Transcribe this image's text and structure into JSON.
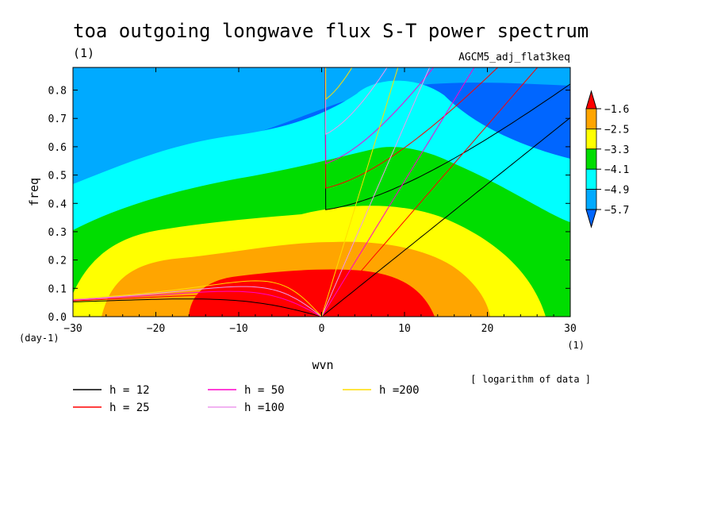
{
  "chart_data": {
    "type": "heatmap",
    "title": "toa outgoing longwave flux S-T power spectrum",
    "units_label": "(1)",
    "subtitle_right": "AGCM5_adj_flat3keq",
    "xlabel": "wvn",
    "ylabel": "freq",
    "x_unit": "(1)",
    "y_unit": "(day-1)",
    "note": "[ logarithm of data ]",
    "xlim": [
      -30,
      30
    ],
    "ylim": [
      0,
      0.88
    ],
    "x_ticks": [
      "-30",
      "-20",
      "-10",
      "0",
      "10",
      "20",
      "30"
    ],
    "y_ticks": [
      "0.0",
      "0.1",
      "0.2",
      "0.3",
      "0.4",
      "0.5",
      "0.6",
      "0.7",
      "0.8"
    ],
    "colorbar": {
      "levels": [
        "-1.6",
        "-2.5",
        "-3.3",
        "-4.1",
        "-4.9",
        "-5.7"
      ],
      "colors": [
        "#ff0000",
        "#ffa500",
        "#ffff00",
        "#00dd00",
        "#00ffff",
        "#00aaff",
        "#0066ff"
      ]
    },
    "dispersion_curves": [
      {
        "name": "h = 12",
        "h": 12,
        "color": "#000000"
      },
      {
        "name": "h = 25",
        "h": 25,
        "color": "#ff0000"
      },
      {
        "name": "h = 50",
        "h": 50,
        "color": "#ff00cc"
      },
      {
        "name": "h =100",
        "h": 100,
        "color": "#ee99ee"
      },
      {
        "name": "h =200",
        "h": 200,
        "color": "#ffdd00"
      }
    ]
  }
}
